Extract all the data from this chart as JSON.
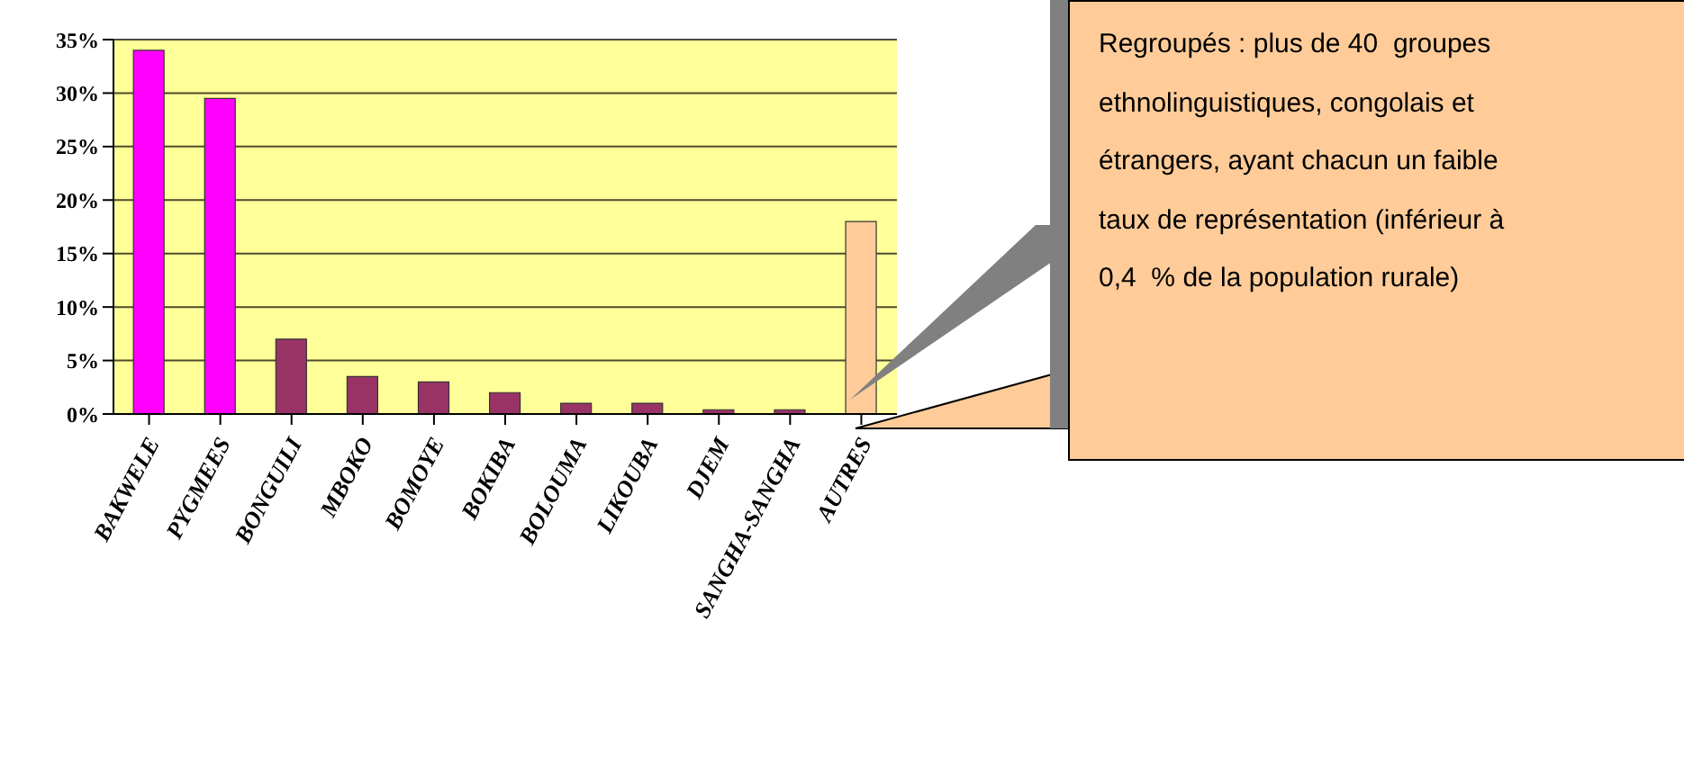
{
  "chart_data": {
    "type": "bar",
    "categories": [
      "BAKWELE",
      "PYGMEES",
      "BONGUILI",
      "MBOKO",
      "BOMOYE",
      "BOKIBA",
      "BOLOUMA",
      "LIKOUBA",
      "DJEM",
      "SANGHA-SANGHA",
      "AUTRES"
    ],
    "values": [
      34,
      29.5,
      7,
      3.5,
      3,
      2,
      1,
      1,
      0.4,
      0.4,
      18
    ],
    "colors": [
      "#ff00ff",
      "#ff00ff",
      "#993366",
      "#993366",
      "#993366",
      "#993366",
      "#993366",
      "#993366",
      "#993366",
      "#993366",
      "#ffcc99"
    ],
    "ylim": [
      0,
      35
    ],
    "yticks": [
      {
        "value": 0,
        "label": "0%"
      },
      {
        "value": 5,
        "label": "5%"
      },
      {
        "value": 10,
        "label": "10%"
      },
      {
        "value": 15,
        "label": "15%"
      },
      {
        "value": 20,
        "label": "20%"
      },
      {
        "value": 25,
        "label": "25%"
      },
      {
        "value": 30,
        "label": "30%"
      },
      {
        "value": 35,
        "label": "35%"
      }
    ],
    "grid": "y",
    "annotations": [
      "Regroupés : plus de 40  groupes ethnolinguistiques, congolais et étrangers, ayant chacun un faible taux de représentation (inférieur à 0,4  % de la population rurale)"
    ]
  }
}
